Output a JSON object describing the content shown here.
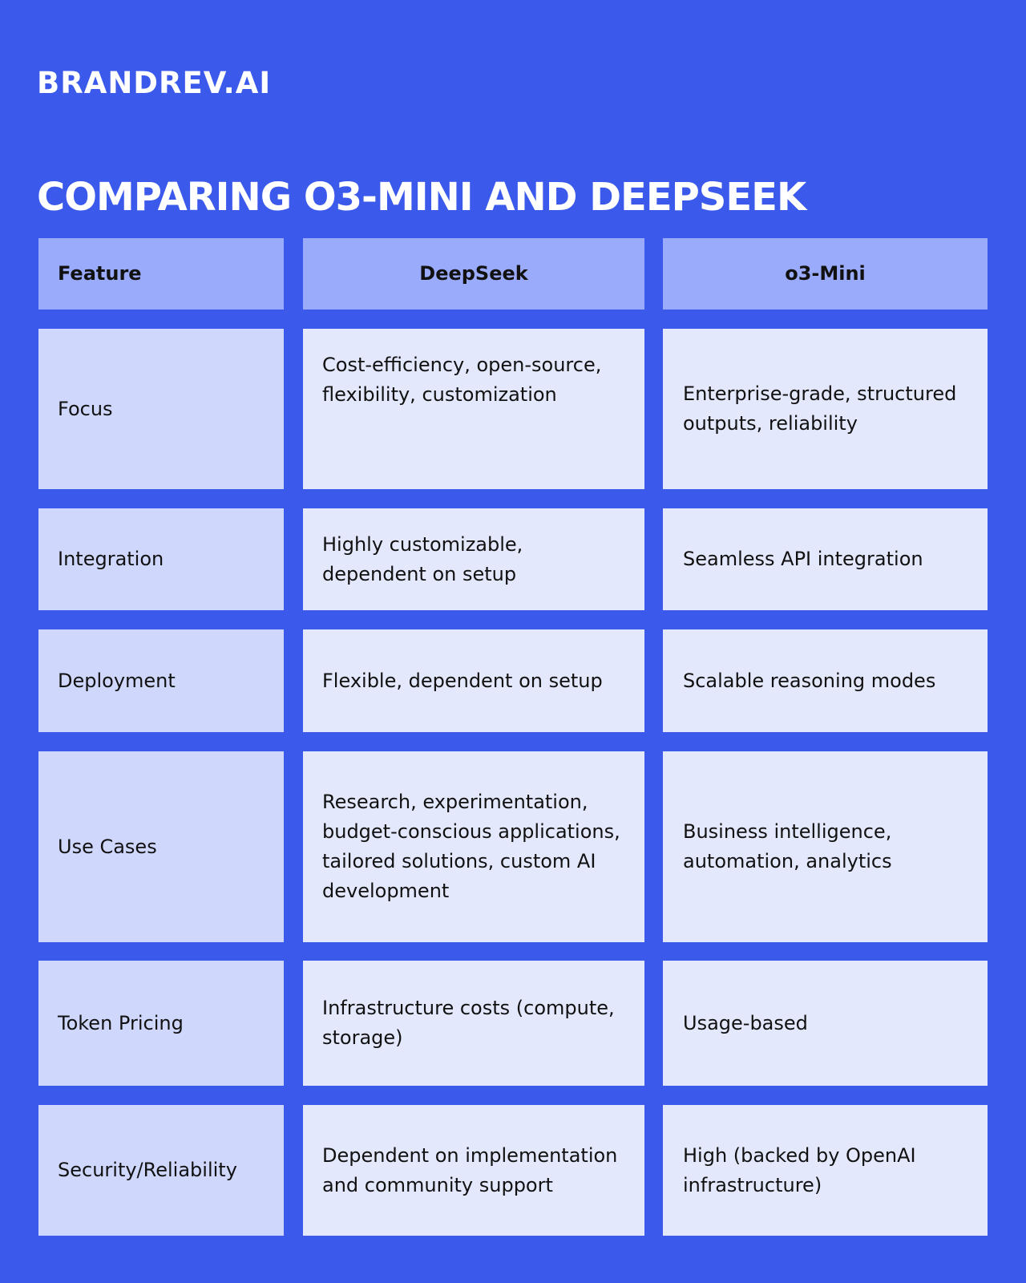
{
  "brand": {
    "logo_text": "BRANDREV.AI"
  },
  "page": {
    "title": "COMPARING O3-MINI AND DEEPSEEK"
  },
  "table": {
    "headers": [
      "Feature",
      "DeepSeek",
      "o3-Mini"
    ],
    "rows": [
      {
        "feature": "Focus",
        "deepseek": "Cost-efficiency, open-source, flexibility, customization",
        "o3mini": "Enterprise-grade, structured outputs, reliability"
      },
      {
        "feature": "Integration",
        "deepseek": "Highly customizable, dependent on setup",
        "o3mini": "Seamless API integration"
      },
      {
        "feature": "Deployment",
        "deepseek": "Flexible, dependent on setup",
        "o3mini": "Scalable reasoning modes"
      },
      {
        "feature": "Use Cases",
        "deepseek": "Research, experimentation, budget-conscious applications, tailored solutions, custom AI development",
        "o3mini": "Business intelligence, automation, analytics"
      },
      {
        "feature": "Token Pricing",
        "deepseek": "Infrastructure costs (compute, storage)",
        "o3mini": "Usage-based"
      },
      {
        "feature": "Security/Reliability",
        "deepseek": "Dependent on implementation and community support",
        "o3mini": "High (backed by OpenAI infrastructure)"
      }
    ]
  },
  "colors": {
    "background": "#3b5aec",
    "header_cell": "#9aabfb",
    "feature_cell": "#cfd7fd",
    "value_cell": "#e4e8fd",
    "text": "#111111",
    "title_text": "#ffffff"
  }
}
